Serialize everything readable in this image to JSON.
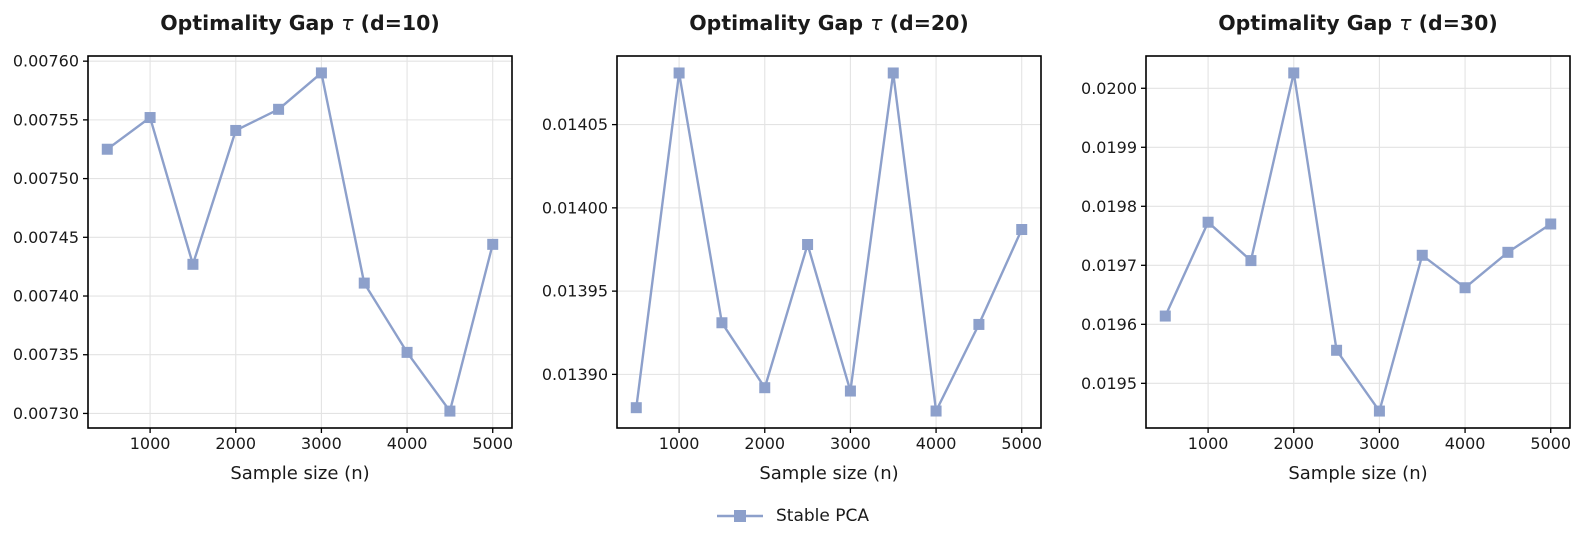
{
  "figure": {
    "background": "#ffffff",
    "accent_color": "#8da0cb",
    "grid_color": "#e3e3e3",
    "spine_color": "#000000",
    "text_color": "#1a1a1a",
    "legend": {
      "label": "Stable PCA",
      "marker": "square",
      "position": "bottom-center"
    }
  },
  "chart_data": [
    {
      "type": "line",
      "title": "Optimality Gap τ (d=10)",
      "xlabel": "Sample size (n)",
      "series_name": "Stable PCA",
      "marker": "square",
      "grid": true,
      "x": [
        500,
        1000,
        1500,
        2000,
        2500,
        3000,
        3500,
        4000,
        4500,
        5000
      ],
      "y": [
        0.007525,
        0.007552,
        0.007427,
        0.007541,
        0.007559,
        0.00759,
        0.007411,
        0.007352,
        0.007302,
        0.007444
      ],
      "xlim": [
        275,
        5225
      ],
      "ylim": [
        0.0072876,
        0.0076044
      ],
      "xticks": [
        1000,
        2000,
        3000,
        4000,
        5000
      ],
      "yticks": [
        0.0073,
        0.00735,
        0.0074,
        0.00745,
        0.0075,
        0.00755,
        0.0076
      ],
      "ytick_decimals": 5
    },
    {
      "type": "line",
      "title": "Optimality Gap τ (d=20)",
      "xlabel": "Sample size (n)",
      "series_name": "Stable PCA",
      "marker": "square",
      "grid": true,
      "x": [
        500,
        1000,
        1500,
        2000,
        2500,
        3000,
        3500,
        4000,
        4500,
        5000
      ],
      "y": [
        0.01388,
        0.014081,
        0.013931,
        0.013892,
        0.013978,
        0.01389,
        0.014081,
        0.013878,
        0.01393,
        0.013987
      ],
      "xlim": [
        275,
        5225
      ],
      "ylim": [
        0.0138678,
        0.0140912
      ],
      "xticks": [
        1000,
        2000,
        3000,
        4000,
        5000
      ],
      "yticks": [
        0.0139,
        0.01395,
        0.014,
        0.01405
      ],
      "ytick_decimals": 5
    },
    {
      "type": "line",
      "title": "Optimality Gap τ (d=30)",
      "xlabel": "Sample size (n)",
      "series_name": "Stable PCA",
      "marker": "square",
      "grid": true,
      "x": [
        500,
        1000,
        1500,
        2000,
        2500,
        3000,
        3500,
        4000,
        4500,
        5000
      ],
      "y": [
        0.019614,
        0.019773,
        0.019708,
        0.020026,
        0.019556,
        0.019453,
        0.019717,
        0.019662,
        0.019722,
        0.01977
      ],
      "xlim": [
        275,
        5225
      ],
      "ylim": [
        0.0194243,
        0.0200547
      ],
      "xticks": [
        1000,
        2000,
        3000,
        4000,
        5000
      ],
      "yticks": [
        0.0195,
        0.0196,
        0.0197,
        0.0198,
        0.0199,
        0.02
      ],
      "ytick_decimals": 4
    }
  ]
}
